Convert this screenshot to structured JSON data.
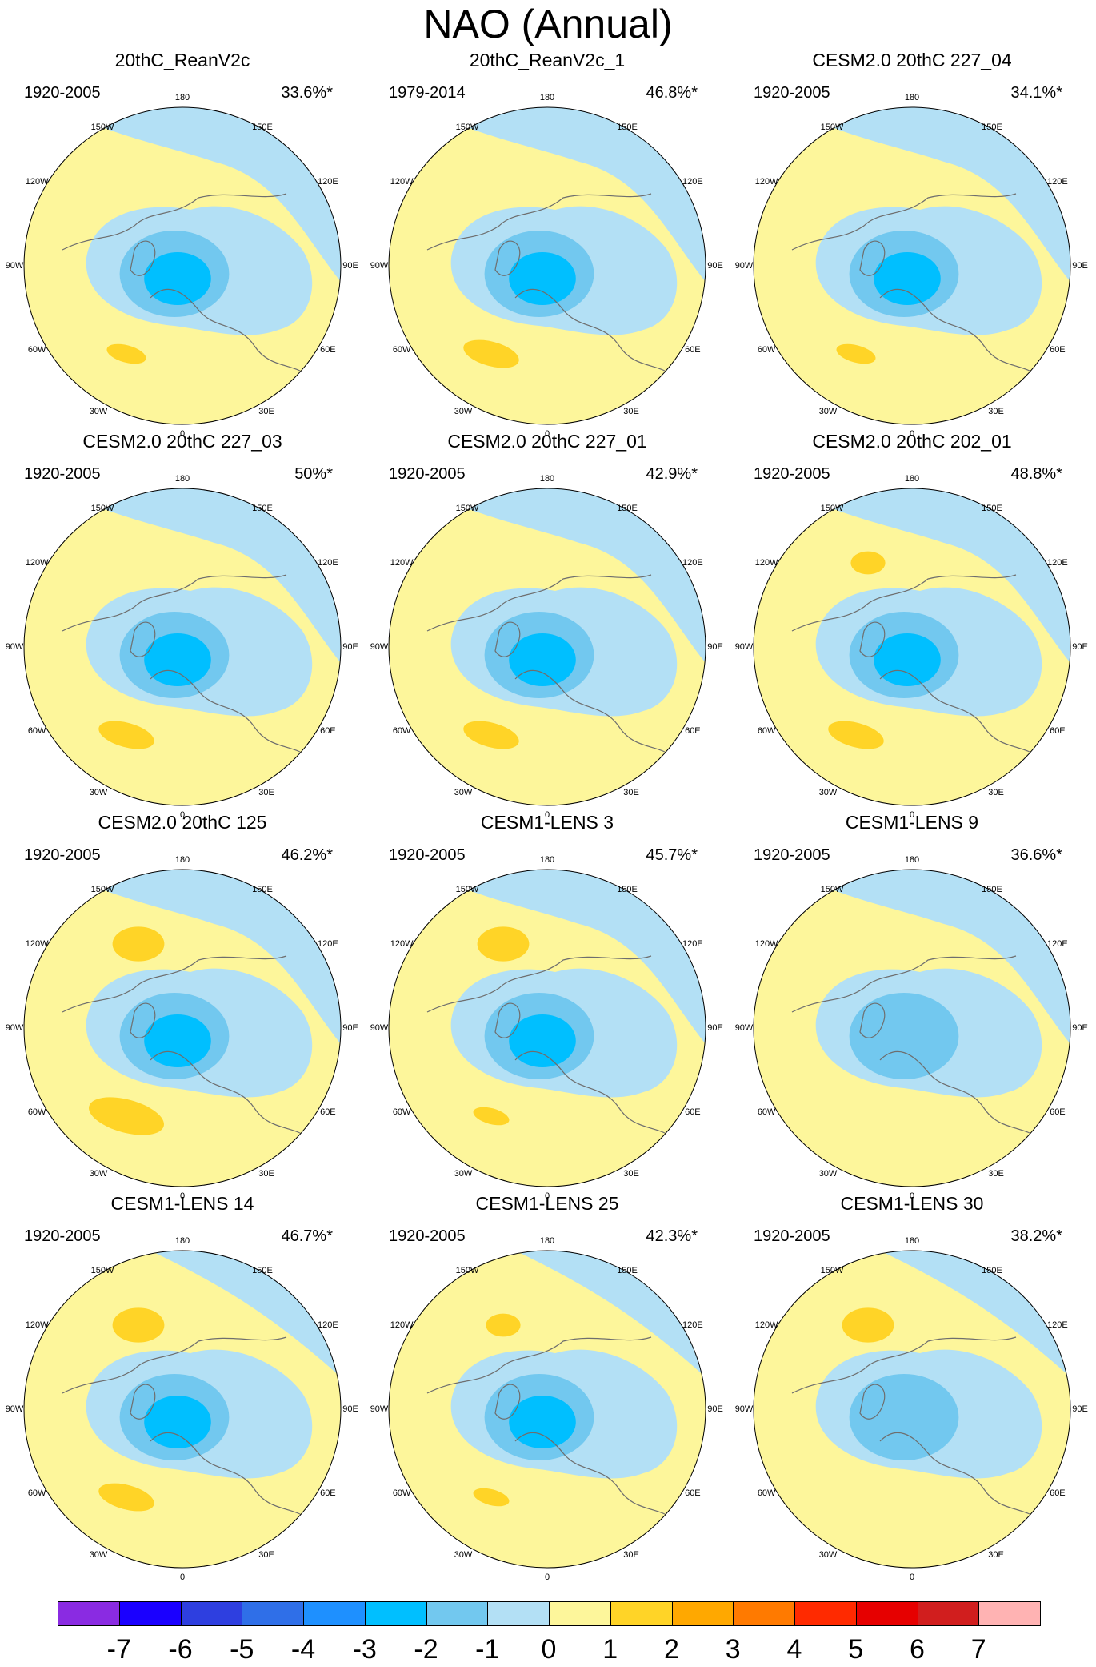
{
  "title": "NAO (Annual)",
  "lon_labels": [
    "180",
    "150E",
    "120E",
    "90E",
    "60E",
    "30E",
    "0",
    "30W",
    "60W",
    "90W",
    "120W",
    "150W"
  ],
  "panels": [
    {
      "title": "20thC_ReanV2c",
      "period": "1920-2005",
      "pct": "33.6%*",
      "map": {
        "ring_levels": [
          -1,
          -2,
          -3
        ],
        "north_high": false,
        "atlantic_high": "weak",
        "pacific_high": "none"
      }
    },
    {
      "title": "20thC_ReanV2c_1",
      "period": "1979-2014",
      "pct": "46.8%*",
      "map": {
        "ring_levels": [
          -1,
          -2,
          -3
        ],
        "north_high": false,
        "atlantic_high": "moderate",
        "pacific_high": "none"
      }
    },
    {
      "title": "CESM2.0 20thC 227_04",
      "period": "1920-2005",
      "pct": "34.1%*",
      "map": {
        "ring_levels": [
          -1,
          -2,
          -3
        ],
        "north_high": false,
        "atlantic_high": "weak",
        "pacific_high": "none"
      }
    },
    {
      "title": "CESM2.0 20thC 227_03",
      "period": "1920-2005",
      "pct": "50%*",
      "map": {
        "ring_levels": [
          -1,
          -2,
          -3
        ],
        "north_high": false,
        "atlantic_high": "moderate",
        "pacific_high": "none"
      }
    },
    {
      "title": "CESM2.0 20thC 227_01",
      "period": "1920-2005",
      "pct": "42.9%*",
      "map": {
        "ring_levels": [
          -1,
          -2,
          -3
        ],
        "north_high": false,
        "atlantic_high": "moderate",
        "pacific_high": "none"
      }
    },
    {
      "title": "CESM2.0 20thC 202_01",
      "period": "1920-2005",
      "pct": "48.8%*",
      "map": {
        "ring_levels": [
          -1,
          -2,
          -3
        ],
        "north_high": false,
        "atlantic_high": "moderate",
        "pacific_high": "small"
      }
    },
    {
      "title": "CESM2.0 20thC 125",
      "period": "1920-2005",
      "pct": "46.2%*",
      "map": {
        "ring_levels": [
          -1,
          -2,
          -3
        ],
        "north_high": false,
        "atlantic_high": "strong",
        "pacific_high": "moderate"
      }
    },
    {
      "title": "CESM1-LENS 3",
      "period": "1920-2005",
      "pct": "45.7%*",
      "map": {
        "ring_levels": [
          -1,
          -2,
          -3
        ],
        "north_high": false,
        "atlantic_high": "small",
        "pacific_high": "moderate"
      }
    },
    {
      "title": "CESM1-LENS 9",
      "period": "1920-2005",
      "pct": "36.6%*",
      "map": {
        "ring_levels": [
          -1,
          -2
        ],
        "north_high": false,
        "atlantic_high": "none",
        "pacific_high": "none"
      }
    },
    {
      "title": "CESM1-LENS 14",
      "period": "1920-2005",
      "pct": "46.7%*",
      "map": {
        "ring_levels": [
          -1,
          -2,
          -3
        ],
        "north_high": true,
        "atlantic_high": "moderate",
        "pacific_high": "moderate"
      }
    },
    {
      "title": "CESM1-LENS 25",
      "period": "1920-2005",
      "pct": "42.3%*",
      "map": {
        "ring_levels": [
          -1,
          -2,
          -3
        ],
        "north_high": true,
        "atlantic_high": "small",
        "pacific_high": "small"
      }
    },
    {
      "title": "CESM1-LENS 30",
      "period": "1920-2005",
      "pct": "38.2%*",
      "map": {
        "ring_levels": [
          -1,
          -2
        ],
        "north_high": true,
        "atlantic_high": "none",
        "pacific_high": "moderate"
      }
    }
  ],
  "colorbar": {
    "labels": [
      "-7",
      "-6",
      "-5",
      "-4",
      "-3",
      "-2",
      "-1",
      "0",
      "1",
      "2",
      "3",
      "4",
      "5",
      "6",
      "7"
    ],
    "colors": [
      "#8a2be2",
      "#1a00ff",
      "#2e3fe0",
      "#2f6fe8",
      "#1e90ff",
      "#00bfff",
      "#72c8ef",
      "#b3e0f5",
      "#fdf69b",
      "#ffd427",
      "#ffa800",
      "#ff7a00",
      "#ff2a00",
      "#e60000",
      "#d11e1e",
      "#ffb3b3"
    ]
  }
}
